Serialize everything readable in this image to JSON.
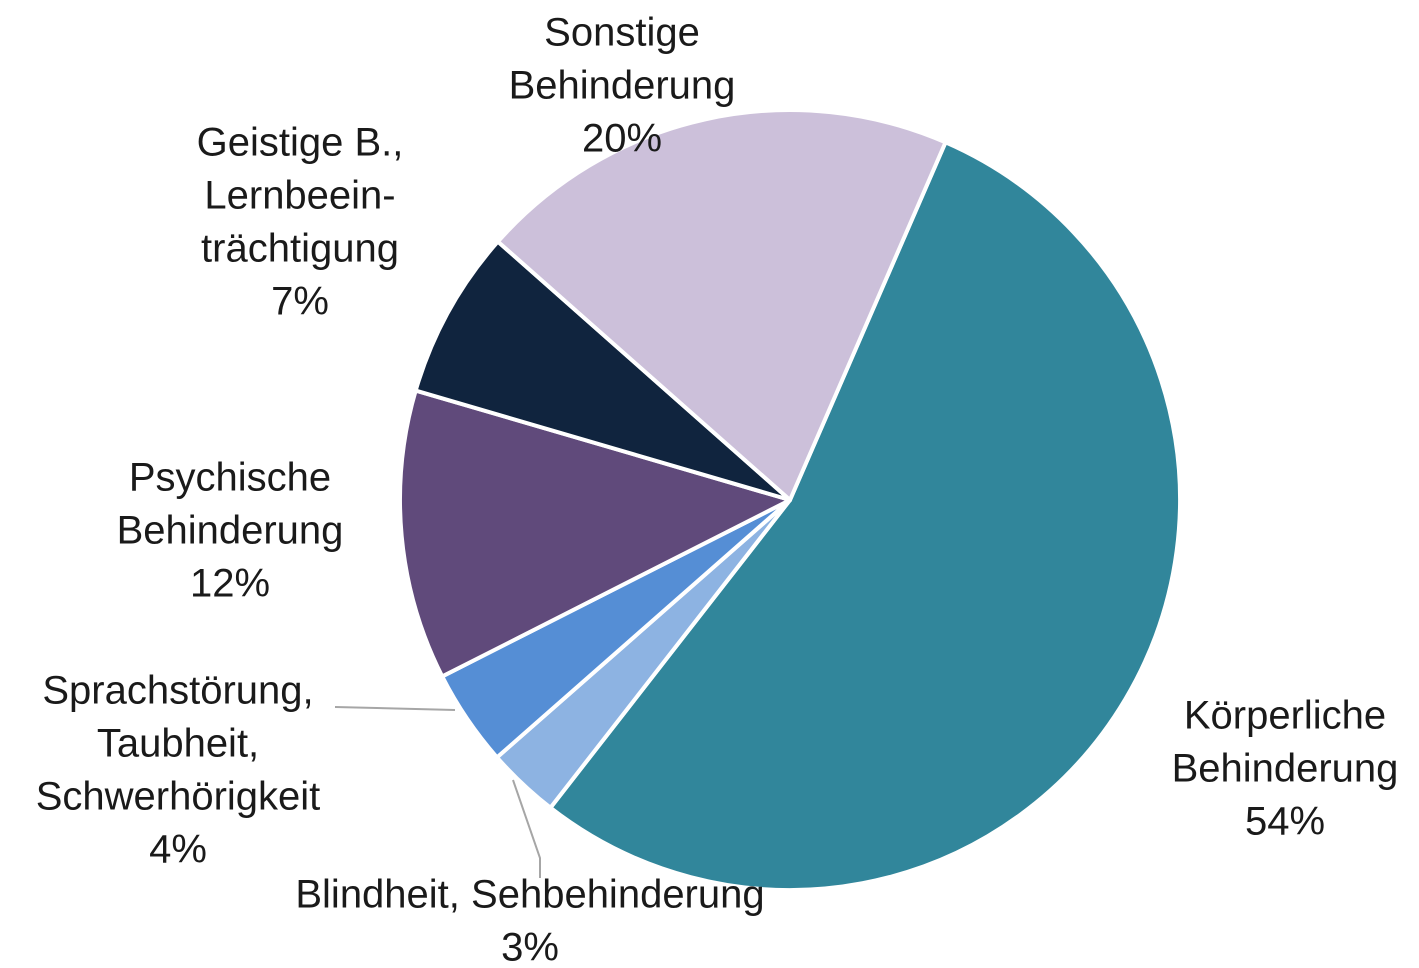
{
  "chart_data": {
    "type": "pie",
    "categories": [
      [
        "Körperliche",
        "Behinderung"
      ],
      [
        "Blindheit, Sehbehinderung"
      ],
      [
        "Sprachstörung,",
        "Taubheit,",
        "Schwerhörigkeit"
      ],
      [
        "Psychische",
        "Behinderung"
      ],
      [
        "Geistige B.,",
        "Lernbeein-",
        "trächtigung"
      ],
      [
        "Sonstige",
        "Behinderung"
      ]
    ],
    "values": [
      54,
      3,
      4,
      12,
      7,
      20
    ],
    "value_labels": [
      "54%",
      "3%",
      "4%",
      "12%",
      "7%",
      "20%"
    ],
    "colors": [
      "#31869b",
      "#8db3e2",
      "#558ed5",
      "#604a7b",
      "#10243e",
      "#ccc0da"
    ]
  }
}
